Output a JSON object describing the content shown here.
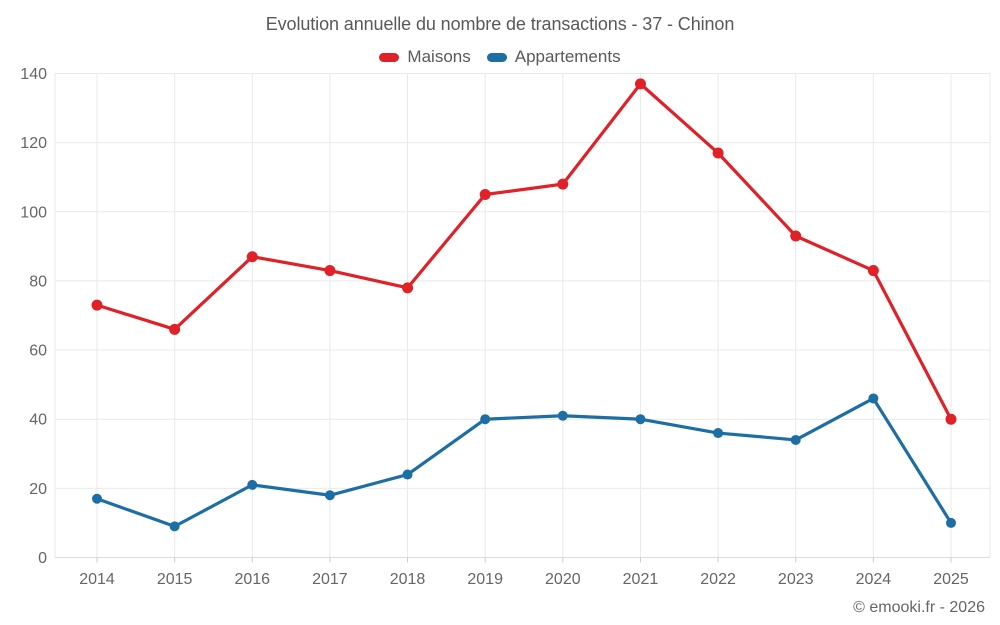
{
  "title": "Evolution annuelle du nombre de transactions - 37 - Chinon",
  "footer": {
    "credit": "© emooki.fr - 2026"
  },
  "palette": {
    "maisons_red": "#e02127",
    "appartements_blue": "#1c6ea4",
    "grid_line": "#e9e9e9",
    "axis_line": "#dcdcdc",
    "tick_mark": "#cccccc",
    "axis_text": "#666666",
    "title_text": "#58595b",
    "background": "#ffffff"
  },
  "chart_data": {
    "type": "line",
    "title": "Evolution annuelle du nombre de transactions - 37 - Chinon",
    "categories": [
      "2014",
      "2015",
      "2016",
      "2017",
      "2018",
      "2019",
      "2020",
      "2021",
      "2022",
      "2023",
      "2024",
      "2025"
    ],
    "series": [
      {
        "name": "Maisons",
        "color": "#e02127",
        "values": [
          73,
          66,
          87,
          83,
          78,
          105,
          108,
          137,
          117,
          93,
          83,
          40
        ]
      },
      {
        "name": "Appartements",
        "color": "#1c6ea4",
        "values": [
          17,
          9,
          21,
          18,
          24,
          40,
          41,
          40,
          36,
          34,
          46,
          10
        ]
      }
    ],
    "xlabel": "",
    "ylabel": "",
    "ylim": [
      0,
      140
    ],
    "ytick_step": 20,
    "grid": true,
    "legend_position": "top",
    "marker": "circle"
  }
}
